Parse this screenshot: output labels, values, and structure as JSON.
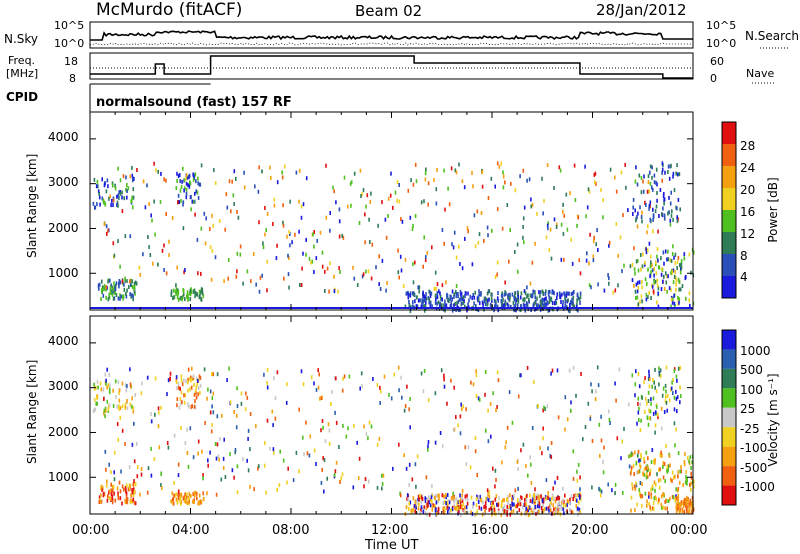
{
  "header": {
    "station": "McMurdo (fitACF)",
    "beam": "Beam 02",
    "date": "28/Jan/2012"
  },
  "noise_panel": {
    "left_label": "N.Sky",
    "right_label": "N.Search",
    "left_ticks": [
      "10^5",
      "10^0"
    ],
    "right_ticks": [
      "10^5",
      "10^0"
    ]
  },
  "freq_panel": {
    "left_label_line1": "Freq.",
    "left_label_line2": "[MHz]",
    "right_label": "Nave",
    "left_ticks": [
      "18",
      "8"
    ],
    "right_ticks": [
      "60",
      "0"
    ]
  },
  "cpid": {
    "label": "CPID",
    "program": "normalsound (fast) 157 RF"
  },
  "chart_data": [
    {
      "type": "heatmap",
      "name": "power",
      "ylabel": "Slant Range [km]",
      "y_ticks": [
        "4000",
        "3000",
        "2000",
        "1000"
      ],
      "ylim": [
        180,
        4600
      ],
      "xlim": [
        0,
        24
      ],
      "colorbar_title": "Power [dB]",
      "colorbar_labels": [
        "28",
        "24",
        "20",
        "16",
        "12",
        "8",
        "4"
      ],
      "colors": [
        "#1a1adc",
        "#2a4fb8",
        "#2e7d56",
        "#50c020",
        "#f0d020",
        "#f5a010",
        "#f06010",
        "#e01010"
      ]
    },
    {
      "type": "heatmap",
      "name": "velocity",
      "ylabel": "Slant Range [km]",
      "y_ticks": [
        "4000",
        "3000",
        "2000",
        "1000"
      ],
      "ylim": [
        180,
        4600
      ],
      "xlim": [
        0,
        24
      ],
      "colorbar_title": "Velocity [m s⁻¹]",
      "colorbar_labels": [
        "1000",
        "500",
        "100",
        "25",
        "-25",
        "-100",
        "-500",
        "-1000"
      ],
      "colors": [
        "#1a1adc",
        "#2a5fb0",
        "#2e7d56",
        "#50c020",
        "#c8c8c8",
        "#f0d020",
        "#f5a010",
        "#f06010",
        "#e01010"
      ]
    }
  ],
  "x_axis": {
    "ticks": [
      "00:00",
      "04:00",
      "08:00",
      "12:00",
      "16:00",
      "20:00",
      "00:00"
    ],
    "label": "Time UT"
  }
}
